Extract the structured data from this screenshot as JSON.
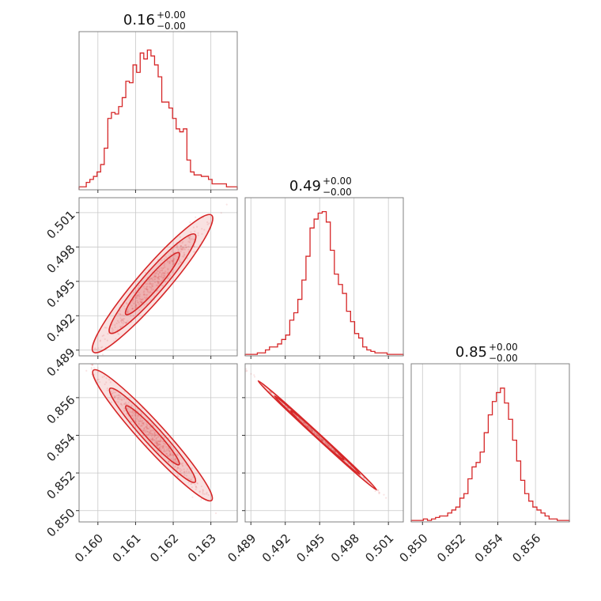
{
  "chart_data": {
    "type": "corner",
    "color": "#d62728",
    "grid": true,
    "params": [
      {
        "title_value": "0.16",
        "err_plus": "+0.00",
        "err_minus": "−0.00",
        "range": [
          0.1595,
          0.1637
        ],
        "ticks": [
          0.16,
          0.161,
          0.162,
          0.163
        ],
        "tick_labels": [
          "0.160",
          "0.161",
          "0.162",
          "0.163"
        ]
      },
      {
        "title_value": "0.49",
        "err_plus": "+0.00",
        "err_minus": "−0.00",
        "range": [
          0.4885,
          0.5023
        ],
        "ticks": [
          0.489,
          0.492,
          0.495,
          0.498,
          0.501
        ],
        "tick_labels": [
          "0.489",
          "0.492",
          "0.495",
          "0.498",
          "0.501"
        ]
      },
      {
        "title_value": "0.85",
        "err_plus": "+0.00",
        "err_minus": "−0.00",
        "range": [
          0.8494,
          0.8578
        ],
        "ticks": [
          0.85,
          0.852,
          0.854,
          0.856
        ],
        "tick_labels": [
          "0.850",
          "0.852",
          "0.854",
          "0.856"
        ]
      }
    ],
    "histograms": [
      {
        "param": 0,
        "counts": [
          0.02,
          0.02,
          0.05,
          0.07,
          0.09,
          0.12,
          0.17,
          0.28,
          0.48,
          0.52,
          0.51,
          0.56,
          0.62,
          0.73,
          0.72,
          0.84,
          0.79,
          0.92,
          0.88,
          0.94,
          0.9,
          0.84,
          0.76,
          0.59,
          0.59,
          0.55,
          0.48,
          0.41,
          0.39,
          0.41,
          0.2,
          0.12,
          0.1,
          0.1,
          0.09,
          0.09,
          0.07,
          0.04,
          0.04,
          0.04,
          0.04,
          0.02,
          0.02,
          0.02
        ]
      },
      {
        "param": 1,
        "counts": [
          0.01,
          0.01,
          0.01,
          0.02,
          0.02,
          0.04,
          0.06,
          0.06,
          0.08,
          0.11,
          0.14,
          0.24,
          0.29,
          0.38,
          0.51,
          0.67,
          0.86,
          0.92,
          0.96,
          0.97,
          0.9,
          0.71,
          0.55,
          0.48,
          0.42,
          0.3,
          0.23,
          0.15,
          0.12,
          0.06,
          0.04,
          0.03,
          0.02,
          0.02,
          0.02,
          0.01,
          0.01,
          0.01,
          0.01
        ]
      },
      {
        "param": 2,
        "counts": [
          0.01,
          0.01,
          0.01,
          0.02,
          0.01,
          0.02,
          0.03,
          0.04,
          0.04,
          0.06,
          0.08,
          0.1,
          0.16,
          0.19,
          0.29,
          0.37,
          0.4,
          0.47,
          0.6,
          0.72,
          0.81,
          0.87,
          0.9,
          0.8,
          0.69,
          0.55,
          0.41,
          0.28,
          0.19,
          0.14,
          0.1,
          0.08,
          0.06,
          0.04,
          0.02,
          0.02,
          0.01,
          0.01,
          0.01
        ]
      }
    ],
    "pairs": [
      {
        "x_param": 0,
        "y_param": 1,
        "mean": [
          0.16145,
          0.4948
        ],
        "slope": 3.8,
        "spread": 0.0006
      },
      {
        "x_param": 0,
        "y_param": 2,
        "mean": [
          0.16145,
          0.854
        ],
        "slope": -2.2,
        "spread": 0.0003
      },
      {
        "x_param": 1,
        "y_param": 2,
        "mean": [
          0.4948,
          0.854
        ],
        "slope": -0.56,
        "spread": 6e-05
      }
    ]
  }
}
